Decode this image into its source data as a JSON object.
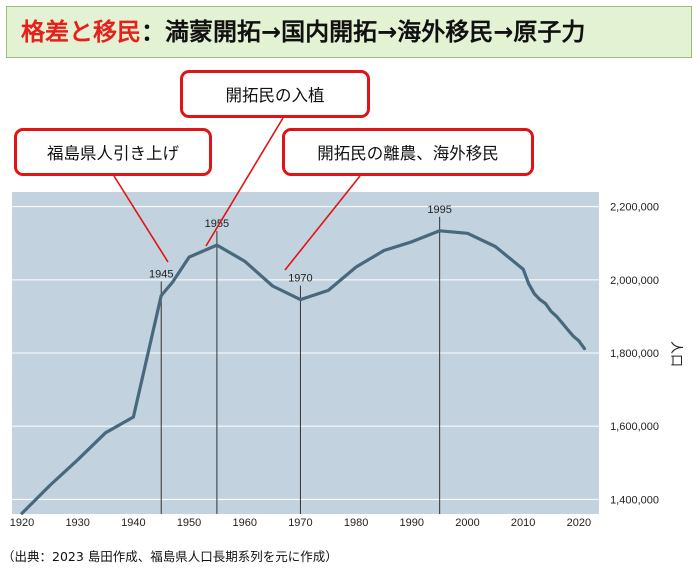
{
  "title": {
    "lead": "格差と移民",
    "rest": "：満蒙開拓→国内開拓→海外移民→原子力"
  },
  "callouts": [
    {
      "id": "evacuation",
      "text": "福島県人引き上げ"
    },
    {
      "id": "settlement",
      "text": "開拓民の入植"
    },
    {
      "id": "departure",
      "text": "開拓民の離農、海外移民"
    }
  ],
  "source_note": "（出典：2023 島田作成、福島県人口長期系列を元に作成）",
  "colors": {
    "plot_background": "#c2d2df",
    "line": "#48687e",
    "callout_border": "#e01414",
    "title_accent": "#e8201c",
    "title_banner": "#e3f2d2"
  },
  "chart_data": {
    "type": "line",
    "title": "",
    "xlabel": "",
    "ylabel": "人口",
    "xlim": [
      1920,
      2022
    ],
    "ylim": [
      1360000,
      2240000
    ],
    "x_ticks": [
      1920,
      1930,
      1940,
      1950,
      1960,
      1970,
      1980,
      1990,
      2000,
      2010,
      2020
    ],
    "y_ticks": [
      1400000,
      1600000,
      1800000,
      2000000,
      2200000
    ],
    "y_tick_labels": [
      "1,400,000",
      "1,600,000",
      "1,800,000",
      "2,000,000",
      "2,200,000"
    ],
    "grid": "horizontal",
    "series": [
      {
        "x": [
          1920,
          1925,
          1930,
          1935,
          1940,
          1945,
          1947,
          1950,
          1955,
          1960,
          1965,
          1970,
          1975,
          1980,
          1985,
          1990,
          1995,
          2000,
          2005,
          2010,
          2011,
          2012,
          2013,
          2014,
          2015,
          2016,
          2017,
          2018,
          2019,
          2020,
          2021
        ],
        "values": [
          1362000,
          1438000,
          1508000,
          1582000,
          1625000,
          1957000,
          1993000,
          2062000,
          2095000,
          2051000,
          1983000,
          1946000,
          1971000,
          2035000,
          2080000,
          2104000,
          2134000,
          2127000,
          2091000,
          2029000,
          1989000,
          1962000,
          1946000,
          1935000,
          1914000,
          1900000,
          1882000,
          1864000,
          1846000,
          1833000,
          1812000
        ]
      }
    ],
    "annotations": [
      {
        "year": 1945,
        "label": "1945"
      },
      {
        "year": 1955,
        "label": "1955"
      },
      {
        "year": 1970,
        "label": "1970"
      },
      {
        "year": 1995,
        "label": "1995"
      }
    ]
  }
}
